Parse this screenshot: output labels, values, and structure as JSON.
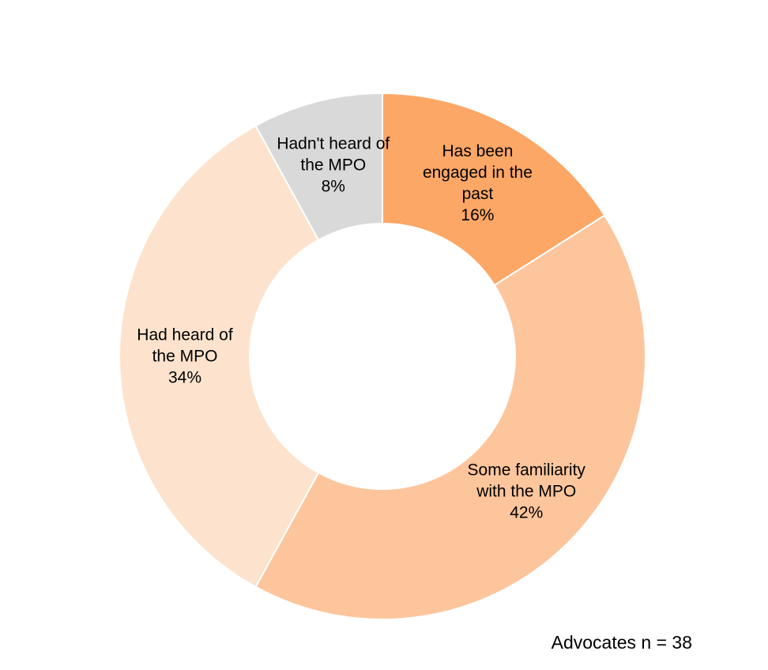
{
  "chart_data": {
    "type": "donut",
    "categories": [
      "Has been engaged in the past",
      "Some familiarity with the MPO",
      "Had heard of the MPO",
      "Hadn't heard of the MPO"
    ],
    "values": [
      16,
      42,
      34,
      8
    ],
    "value_labels": [
      "16%",
      "42%",
      "34%",
      "8%"
    ],
    "colors": [
      "#fda766",
      "#fdc59c",
      "#fde3cd",
      "#d9d9d9"
    ],
    "note": "Advocates n = 38"
  }
}
